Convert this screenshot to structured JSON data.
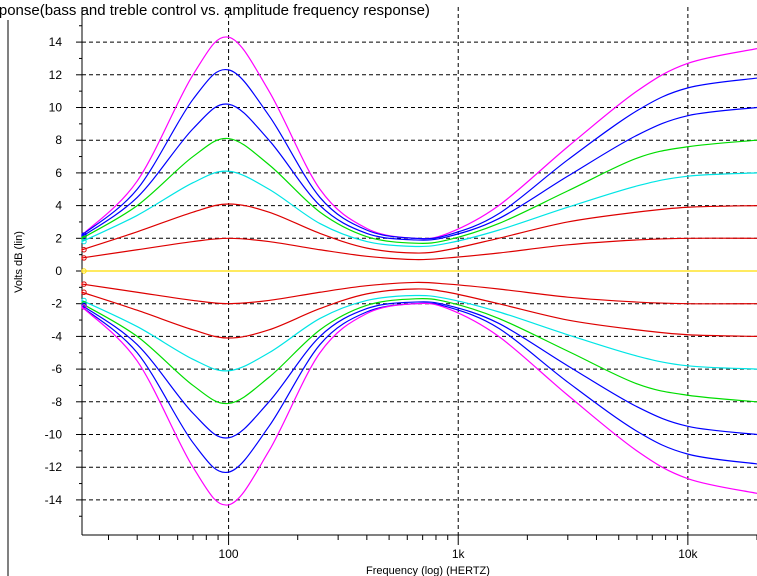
{
  "chart_data": {
    "type": "line",
    "title": "ac response(bass and treble control vs. amplitude frequency response)",
    "xlabel": "Frequency (log) (HERTZ)",
    "ylabel": "Volts dB (lin)",
    "x_scale": "log",
    "xlim": [
      23,
      20000
    ],
    "ylim": [
      -16,
      16
    ],
    "x_ticks": [
      100,
      1000,
      10000
    ],
    "x_tick_labels": [
      "100",
      "1k",
      "10k"
    ],
    "y_ticks": [
      -14,
      -12,
      -10,
      -8,
      -6,
      -4,
      -2,
      0,
      2,
      4,
      6,
      8,
      10,
      12,
      14
    ],
    "y_tick_labels": [
      "-14",
      "-12",
      "-10",
      "-8",
      "-6",
      "-4",
      "-2",
      "0",
      "2",
      "4",
      "6",
      "8",
      "10",
      "12",
      "14"
    ],
    "grid": true,
    "series": [
      {
        "color": "#ff00ff",
        "x": [
          23,
          40,
          70,
          100,
          150,
          250,
          400,
          650,
          900,
          1500,
          3000,
          6000,
          10000,
          20000
        ],
        "y": [
          2.2,
          5.5,
          12.0,
          14.3,
          11.0,
          5.0,
          2.6,
          2.0,
          2.3,
          4.0,
          7.6,
          11.0,
          12.7,
          13.6
        ]
      },
      {
        "color": "#0000ff",
        "x": [
          23,
          40,
          70,
          100,
          150,
          250,
          400,
          650,
          900,
          1500,
          3000,
          6000,
          10000,
          20000
        ],
        "y": [
          2.2,
          5.0,
          10.5,
          12.3,
          9.5,
          4.5,
          2.5,
          2.0,
          2.2,
          3.5,
          6.8,
          9.8,
          11.2,
          11.8
        ]
      },
      {
        "color": "#0000ff",
        "x": [
          23,
          40,
          70,
          100,
          150,
          250,
          400,
          650,
          900,
          1500,
          3000,
          6000,
          10000,
          20000
        ],
        "y": [
          2.1,
          4.5,
          8.7,
          10.2,
          8.0,
          4.0,
          2.3,
          1.9,
          2.1,
          3.2,
          5.8,
          8.3,
          9.5,
          10.0
        ]
      },
      {
        "color": "#00dd00",
        "x": [
          23,
          40,
          70,
          100,
          150,
          250,
          400,
          650,
          900,
          1500,
          3000,
          6000,
          10000,
          20000
        ],
        "y": [
          2.0,
          4.0,
          7.0,
          8.1,
          6.5,
          3.6,
          2.1,
          1.7,
          1.9,
          2.9,
          4.9,
          6.9,
          7.6,
          8.0
        ]
      },
      {
        "color": "#00e5e5",
        "x": [
          23,
          40,
          70,
          100,
          150,
          250,
          400,
          650,
          900,
          1500,
          3000,
          6000,
          10000,
          20000
        ],
        "y": [
          1.8,
          3.4,
          5.4,
          6.1,
          5.0,
          2.9,
          1.8,
          1.5,
          1.7,
          2.5,
          3.9,
          5.2,
          5.8,
          6.0
        ]
      },
      {
        "color": "#dd0000",
        "x": [
          23,
          40,
          70,
          100,
          150,
          250,
          400,
          650,
          900,
          1500,
          3000,
          6000,
          10000,
          20000
        ],
        "y": [
          1.3,
          2.4,
          3.6,
          4.1,
          3.6,
          2.3,
          1.4,
          1.1,
          1.3,
          2.0,
          3.0,
          3.6,
          3.9,
          4.0
        ]
      },
      {
        "color": "#dd0000",
        "x": [
          23,
          40,
          70,
          100,
          150,
          250,
          400,
          650,
          900,
          1500,
          3000,
          6000,
          10000,
          20000
        ],
        "y": [
          0.8,
          1.3,
          1.8,
          2.0,
          1.8,
          1.3,
          0.9,
          0.7,
          0.8,
          1.1,
          1.6,
          1.9,
          2.0,
          2.0
        ]
      },
      {
        "color": "#ffdd00",
        "x": [
          23,
          100,
          1000,
          10000,
          20000
        ],
        "y": [
          0.0,
          0.0,
          0.0,
          0.0,
          0.0
        ]
      },
      {
        "color": "#dd0000",
        "x": [
          23,
          40,
          70,
          100,
          150,
          250,
          400,
          650,
          900,
          1500,
          3000,
          6000,
          10000,
          20000
        ],
        "y": [
          -0.8,
          -1.3,
          -1.8,
          -2.0,
          -1.8,
          -1.3,
          -0.9,
          -0.7,
          -0.8,
          -1.1,
          -1.6,
          -1.9,
          -2.0,
          -2.0
        ]
      },
      {
        "color": "#dd0000",
        "x": [
          23,
          40,
          70,
          100,
          150,
          250,
          400,
          650,
          900,
          1500,
          3000,
          6000,
          10000,
          20000
        ],
        "y": [
          -1.3,
          -2.4,
          -3.6,
          -4.1,
          -3.6,
          -2.3,
          -1.4,
          -1.1,
          -1.3,
          -2.0,
          -3.0,
          -3.6,
          -3.9,
          -4.0
        ]
      },
      {
        "color": "#00e5e5",
        "x": [
          23,
          40,
          70,
          100,
          150,
          250,
          400,
          650,
          900,
          1500,
          3000,
          6000,
          10000,
          20000
        ],
        "y": [
          -1.8,
          -3.4,
          -5.4,
          -6.1,
          -5.0,
          -2.9,
          -1.8,
          -1.5,
          -1.7,
          -2.5,
          -3.9,
          -5.2,
          -5.8,
          -6.0
        ]
      },
      {
        "color": "#00dd00",
        "x": [
          23,
          40,
          70,
          100,
          150,
          250,
          400,
          650,
          900,
          1500,
          3000,
          6000,
          10000,
          20000
        ],
        "y": [
          -2.0,
          -4.0,
          -7.0,
          -8.1,
          -6.5,
          -3.6,
          -2.1,
          -1.7,
          -1.9,
          -2.9,
          -4.9,
          -6.9,
          -7.6,
          -8.0
        ]
      },
      {
        "color": "#0000ff",
        "x": [
          23,
          40,
          70,
          100,
          150,
          250,
          400,
          650,
          900,
          1500,
          3000,
          6000,
          10000,
          20000
        ],
        "y": [
          -2.1,
          -4.5,
          -8.7,
          -10.2,
          -8.0,
          -4.0,
          -2.3,
          -1.9,
          -2.1,
          -3.2,
          -5.8,
          -8.3,
          -9.5,
          -10.0
        ]
      },
      {
        "color": "#0000ff",
        "x": [
          23,
          40,
          70,
          100,
          150,
          250,
          400,
          650,
          900,
          1500,
          3000,
          6000,
          10000,
          20000
        ],
        "y": [
          -2.2,
          -5.0,
          -10.5,
          -12.3,
          -9.5,
          -4.5,
          -2.5,
          -2.0,
          -2.2,
          -3.5,
          -6.8,
          -9.8,
          -11.2,
          -11.8
        ]
      },
      {
        "color": "#ff00ff",
        "x": [
          23,
          40,
          70,
          100,
          150,
          250,
          400,
          650,
          900,
          1500,
          3000,
          6000,
          10000,
          20000
        ],
        "y": [
          -2.2,
          -5.5,
          -12.0,
          -14.3,
          -11.0,
          -5.0,
          -2.6,
          -2.0,
          -2.3,
          -4.0,
          -7.6,
          -11.0,
          -12.7,
          -13.6
        ]
      }
    ]
  }
}
